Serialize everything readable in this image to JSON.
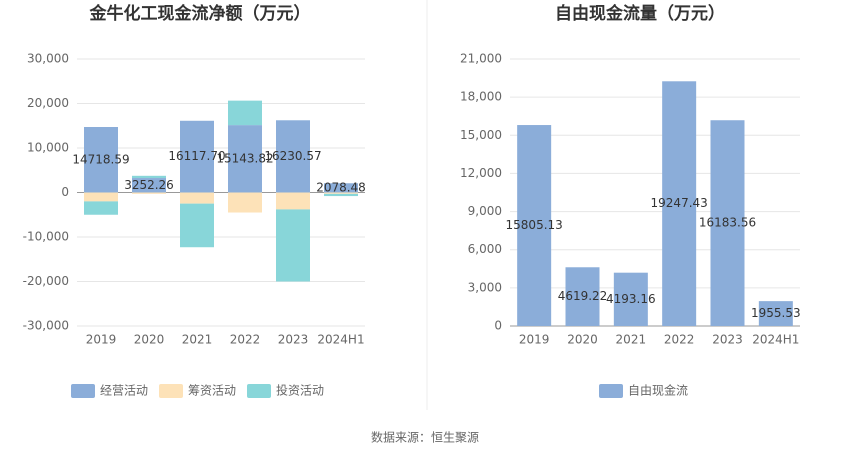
{
  "chart_data": [
    {
      "type": "bar",
      "stacked": true,
      "title": "金牛化工现金流净额（万元）",
      "categories": [
        "2019",
        "2020",
        "2021",
        "2022",
        "2023",
        "2024H1"
      ],
      "series": [
        {
          "name": "经营活动",
          "color": "#8badd9",
          "values": [
            14718.59,
            3252.26,
            16117.7,
            15143.82,
            16230.57,
            2078.48
          ],
          "value_labels": [
            "14718.59",
            "3252.26",
            "16117.70",
            "15143.82",
            "16230.57",
            "2078.48"
          ]
        },
        {
          "name": "筹资活动",
          "color": "#fde2b8",
          "values": [
            -2000,
            -300,
            -2500,
            -4500,
            -3800,
            -300
          ]
        },
        {
          "name": "投资活动",
          "color": "#88d6d9",
          "values": [
            -3000,
            500,
            -9800,
            5500,
            -16200,
            -500
          ]
        }
      ],
      "ylim": [
        -30000,
        30000
      ],
      "yticks": [
        {
          "value": -30000,
          "label": "-30,000"
        },
        {
          "value": -20000,
          "label": "-20,000"
        },
        {
          "value": -10000,
          "label": "-10,000"
        },
        0,
        {
          "value": 10000,
          "label": "10,000"
        },
        {
          "value": 20000,
          "label": "20,000"
        },
        {
          "value": 30000,
          "label": "30,000"
        }
      ],
      "grid": true
    },
    {
      "type": "bar",
      "title": "自由现金流量（万元）",
      "categories": [
        "2019",
        "2020",
        "2021",
        "2022",
        "2023",
        "2024H1"
      ],
      "series": [
        {
          "name": "自由现金流",
          "color": "#8badd9",
          "values": [
            15805.13,
            4619.22,
            4193.16,
            19247.43,
            16183.56,
            1955.53
          ],
          "value_labels": [
            "15805.13",
            "4619.22",
            "4193.16",
            "19247.43",
            "16183.56",
            "1955.53"
          ]
        }
      ],
      "ylim": [
        0,
        21000
      ],
      "yticks": [
        0,
        {
          "value": 3000,
          "label": "3,000"
        },
        {
          "value": 6000,
          "label": "6,000"
        },
        {
          "value": 9000,
          "label": "9,000"
        },
        {
          "value": 12000,
          "label": "12,000"
        },
        {
          "value": 15000,
          "label": "15,000"
        },
        {
          "value": 18000,
          "label": "18,000"
        },
        {
          "value": 21000,
          "label": "21,000"
        }
      ],
      "grid": true
    }
  ],
  "source": "数据来源：恒生聚源"
}
